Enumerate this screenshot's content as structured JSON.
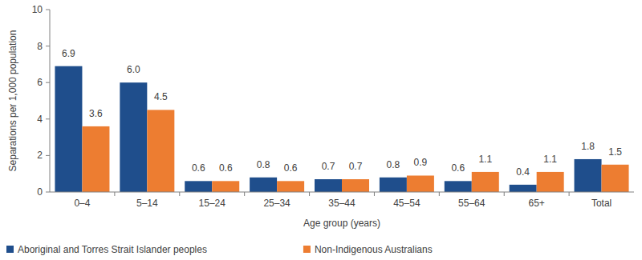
{
  "chart_data": {
    "type": "bar",
    "x_label": "Age group (years)",
    "y_label": "Separations per 1,000 population",
    "categories": [
      "0–4",
      "5–14",
      "15–24",
      "25–34",
      "35–44",
      "45–54",
      "55–64",
      "65+",
      "Total"
    ],
    "series": [
      {
        "name": "Aboriginal and Torres Strait Islander peoples",
        "color": "#1f4e8c",
        "values": [
          6.9,
          6.0,
          0.6,
          0.8,
          0.7,
          0.8,
          0.6,
          0.4,
          1.8
        ],
        "value_labels": [
          "6.9",
          "6.0",
          "0.6",
          "0.8",
          "0.7",
          "0.8",
          "0.6",
          "0.4",
          "1.8"
        ]
      },
      {
        "name": "Non-Indigenous Australians",
        "color": "#ed7d31",
        "values": [
          3.6,
          4.5,
          0.6,
          0.6,
          0.7,
          0.9,
          1.1,
          1.1,
          1.5
        ],
        "value_labels": [
          "3.6",
          "4.5",
          "0.6",
          "0.6",
          "0.7",
          "0.9",
          "1.1",
          "1.1",
          "1.5"
        ]
      }
    ],
    "ylim": [
      0,
      10
    ],
    "yticks": [
      0,
      2,
      4,
      6,
      8,
      10
    ],
    "grid": false,
    "data_labels": true,
    "legend": "bottom"
  }
}
